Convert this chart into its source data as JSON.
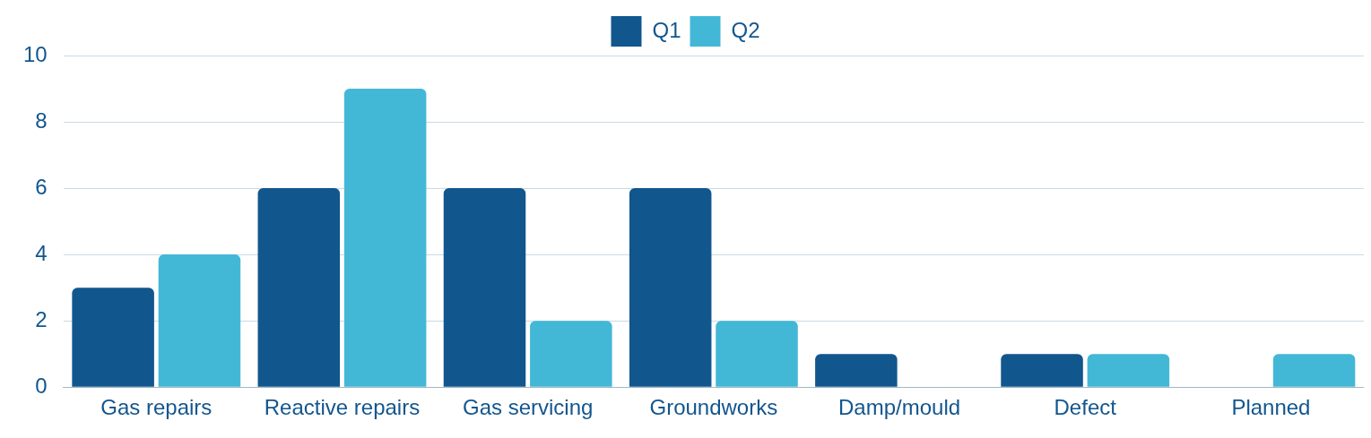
{
  "chart_data": {
    "type": "bar",
    "categories": [
      "Gas repairs",
      "Reactive repairs",
      "Gas servicing",
      "Groundworks",
      "Damp/mould",
      "Defect",
      "Planned"
    ],
    "series": [
      {
        "name": "Q1",
        "color": "#12568e",
        "values": [
          3,
          6,
          6,
          6,
          1,
          1,
          0
        ]
      },
      {
        "name": "Q2",
        "color": "#43b8d6",
        "values": [
          4,
          9,
          2,
          2,
          0,
          1,
          1
        ]
      }
    ],
    "ylim": [
      0,
      10
    ],
    "yticks": [
      0,
      2,
      4,
      6,
      8,
      10
    ],
    "grid": "y",
    "legend": "top"
  }
}
